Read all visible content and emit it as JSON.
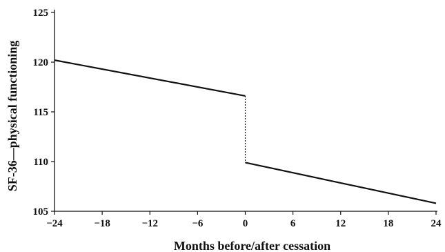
{
  "chart_data": {
    "type": "line",
    "xlabel": "Months before/after cessation",
    "ylabel": "SF-36—physical functioning",
    "xlim": [
      -24,
      24
    ],
    "ylim": [
      105,
      125
    ],
    "x_ticks": [
      -24,
      -18,
      -12,
      -6,
      0,
      6,
      12,
      18,
      24
    ],
    "x_tick_labels": [
      "−24",
      "−18",
      "−12",
      "−6",
      "0",
      "6",
      "12",
      "18",
      "24"
    ],
    "y_ticks": [
      105,
      110,
      115,
      120,
      125
    ],
    "y_tick_labels": [
      "105",
      "110",
      "115",
      "120",
      "125"
    ],
    "grid": false,
    "series": [
      {
        "segment": "before",
        "style": "solid",
        "x": [
          -24,
          0
        ],
        "y": [
          120.2,
          116.6
        ]
      },
      {
        "segment": "after",
        "style": "solid",
        "x": [
          0,
          24
        ],
        "y": [
          109.9,
          105.8
        ]
      },
      {
        "segment": "transition",
        "style": "dotted",
        "x": [
          0,
          0
        ],
        "y": [
          116.6,
          109.9
        ]
      }
    ]
  }
}
